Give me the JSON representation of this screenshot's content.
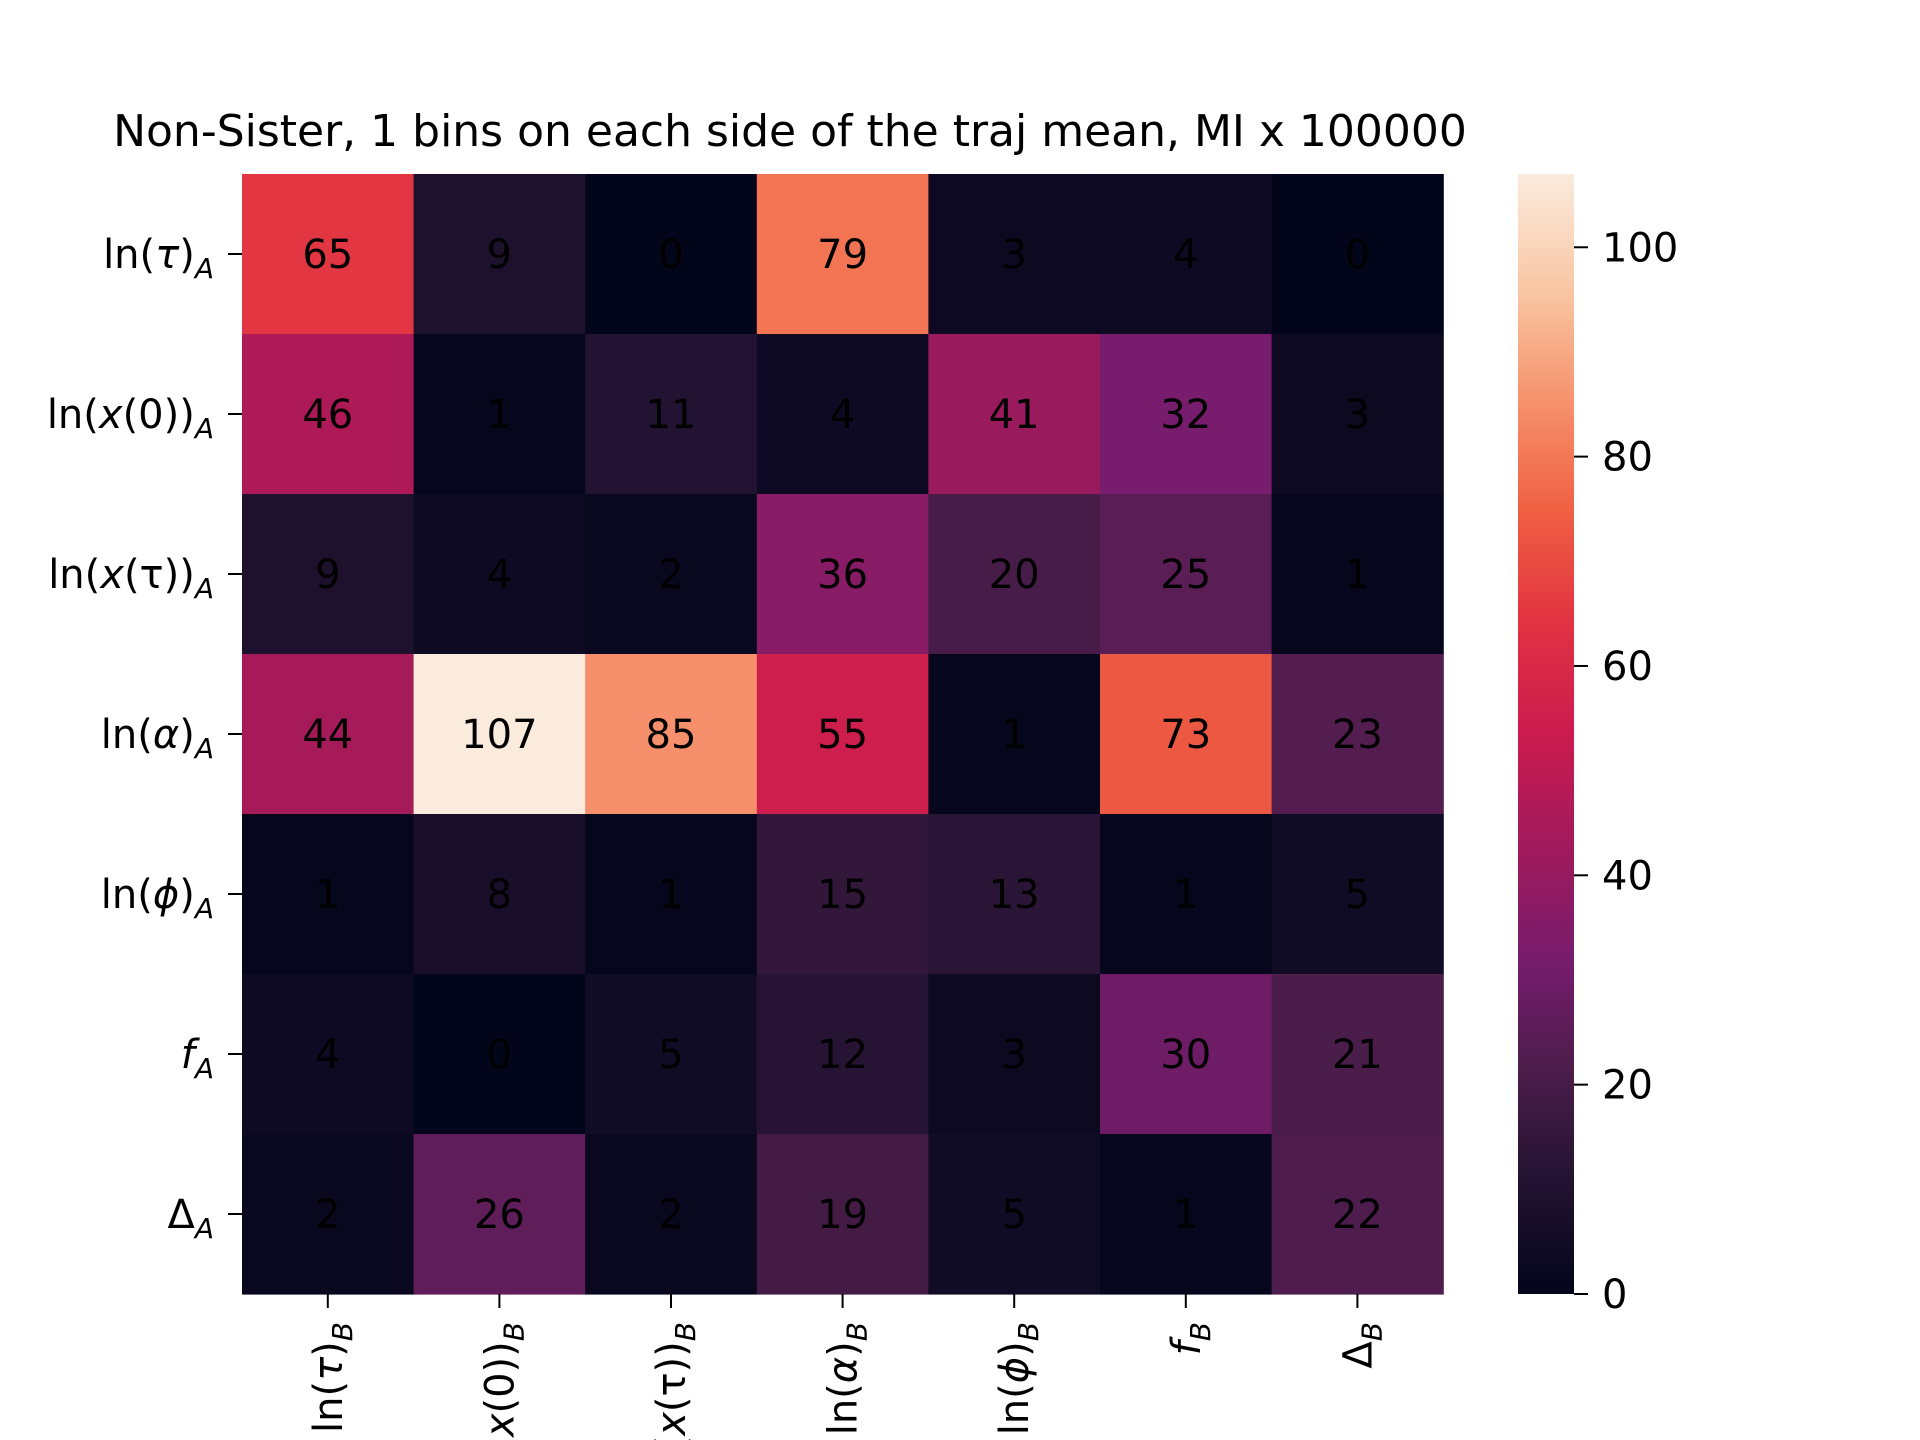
{
  "chart_data": {
    "type": "heatmap",
    "title": "Non-Sister, 1 bins on each side of the traj mean, MI x 100000",
    "rows": [
      {
        "base": "ln(",
        "var": "τ",
        "close": ")",
        "sub": "A"
      },
      {
        "base": "ln(",
        "var": "x",
        "mid": "(0)",
        "close": ")",
        "sub": "A"
      },
      {
        "base": "ln(",
        "var": "x",
        "mid": "(τ)",
        "close": ")",
        "sub": "A"
      },
      {
        "base": "ln(",
        "var": "α",
        "close": ")",
        "sub": "A"
      },
      {
        "base": "ln(",
        "var": "ϕ",
        "close": ")",
        "sub": "A"
      },
      {
        "base": "",
        "var": "f",
        "close": "",
        "sub": "A"
      },
      {
        "base": "Δ",
        "var": "",
        "close": "",
        "sub": "A"
      }
    ],
    "columns": [
      {
        "base": "ln(",
        "var": "τ",
        "close": ")",
        "sub": "B"
      },
      {
        "base": "ln(",
        "var": "x",
        "mid": "(0)",
        "close": ")",
        "sub": "B"
      },
      {
        "base": "ln(",
        "var": "x",
        "mid": "(τ)",
        "close": ")",
        "sub": "B"
      },
      {
        "base": "ln(",
        "var": "α",
        "close": ")",
        "sub": "B"
      },
      {
        "base": "ln(",
        "var": "ϕ",
        "close": ")",
        "sub": "B"
      },
      {
        "base": "",
        "var": "f",
        "close": "",
        "sub": "B"
      },
      {
        "base": "Δ",
        "var": "",
        "close": "",
        "sub": "B"
      }
    ],
    "values": [
      [
        65,
        9,
        0,
        79,
        3,
        4,
        0
      ],
      [
        46,
        1,
        11,
        4,
        41,
        32,
        3
      ],
      [
        9,
        4,
        2,
        36,
        20,
        25,
        1
      ],
      [
        44,
        107,
        85,
        55,
        1,
        73,
        23
      ],
      [
        1,
        8,
        1,
        15,
        13,
        1,
        5
      ],
      [
        4,
        0,
        5,
        12,
        3,
        30,
        21
      ],
      [
        2,
        26,
        2,
        19,
        5,
        1,
        22
      ]
    ],
    "colorbar": {
      "range": [
        0,
        107
      ],
      "ticks": [
        0,
        20,
        40,
        60,
        80,
        100
      ]
    },
    "colormap": "rocket",
    "colormap_stops": [
      "#03051a",
      "#221331",
      "#4c1d4b",
      "#781c6d",
      "#a11a5b",
      "#cb1b4f",
      "#e13342",
      "#f06043",
      "#f6936e",
      "#f9c8a6",
      "#faebdd"
    ]
  }
}
